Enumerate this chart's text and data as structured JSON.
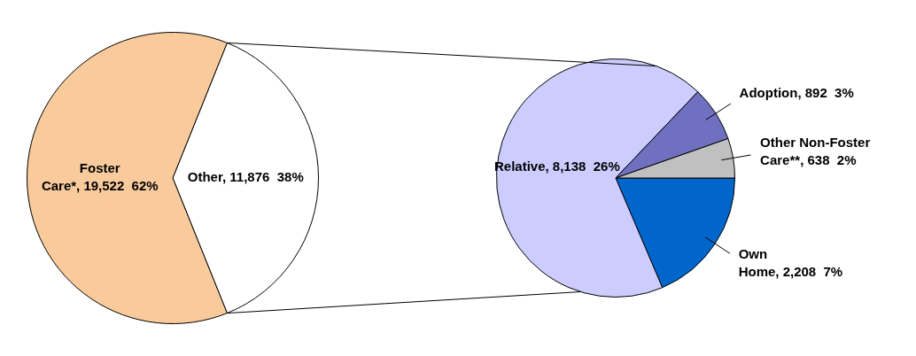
{
  "chart_data": [
    {
      "type": "pie",
      "categories": [
        "Other",
        "Foster Care*"
      ],
      "values": [
        11876,
        19522
      ],
      "colors": [
        "#ffffff",
        "#f9cb9c"
      ],
      "value_labels": [
        "11,876  38%",
        "19,522  62%"
      ],
      "legend": false
    },
    {
      "type": "pie",
      "categories": [
        "Own Home",
        "Relative",
        "Adoption",
        "Other Non-Foster Care**"
      ],
      "values": [
        2208,
        8138,
        892,
        638
      ],
      "colors": [
        "#0066cc",
        "#ccccff",
        "#7070c0",
        "#c0c0c0"
      ],
      "value_labels": [
        "2,208  7%",
        "8,138  26%",
        "892  3%",
        "638  2%"
      ],
      "legend": false
    }
  ]
}
